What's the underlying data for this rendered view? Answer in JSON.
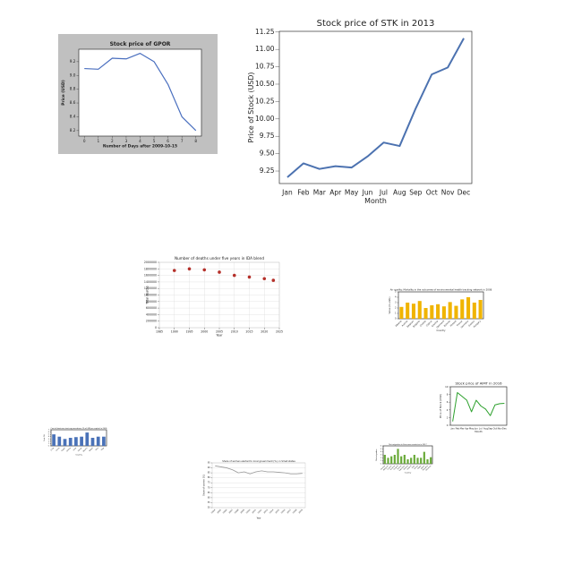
{
  "chart_data": [
    {
      "type": "line",
      "title": "Stock price of GPOR",
      "x_label": "Number of Days after 2009-10-15",
      "y_label": "Price (USD)",
      "x": [
        0,
        1,
        2,
        3,
        4,
        5,
        6,
        7,
        8
      ],
      "values": [
        9.1,
        9.09,
        9.25,
        9.24,
        9.32,
        9.2,
        8.87,
        8.4,
        8.2
      ],
      "color": "#4a6fbf",
      "xlim": [
        -0.4,
        8.4
      ],
      "xticks": [
        0,
        1,
        2,
        3,
        4,
        5,
        6,
        7,
        8
      ],
      "ylim": [
        8.12,
        9.38
      ],
      "yticks": [
        8.2,
        8.4,
        8.6,
        8.8,
        {
          "value": 9,
          "label": "9.0"
        },
        9.2
      ]
    },
    {
      "type": "line",
      "title": "Stock price of STK in 2013",
      "x_label": "Month",
      "y_label": "Price of Stock (USD)",
      "categories": [
        "Jan",
        "Feb",
        "Mar",
        "Apr",
        "May",
        "Jun",
        "Jul",
        "Aug",
        "Sep",
        "Oct",
        "Nov",
        "Dec"
      ],
      "values": [
        9.16,
        9.36,
        9.28,
        9.32,
        9.3,
        9.46,
        9.66,
        9.61,
        10.15,
        10.64,
        10.74,
        11.16
      ],
      "color": "#4c72b0",
      "ylim": [
        9.07,
        11.26
      ],
      "yticks": [
        9.25,
        {
          "value": 9.5,
          "label": "9.50"
        },
        9.75,
        {
          "value": 10,
          "label": "10.00"
        },
        10.25,
        {
          "value": 10.5,
          "label": "10.50"
        },
        10.75,
        {
          "value": 11,
          "label": "11.00"
        },
        11.25
      ]
    },
    {
      "type": "scatter",
      "title": "Number of deaths under five years in IDA blend",
      "x_label": "Year",
      "y_label": "Total deaths",
      "x": [
        1990,
        1995,
        2000,
        2005,
        2010,
        2015,
        2020,
        2023
      ],
      "values": [
        1750000,
        1800000,
        1770000,
        1700000,
        1600000,
        1550000,
        1500000,
        1450000
      ],
      "color": "#b5302a",
      "grid": true,
      "xlim": [
        1985,
        2025
      ],
      "xticks": [
        1985,
        1990,
        1995,
        2000,
        2005,
        2010,
        2015,
        2020,
        2025
      ],
      "ylim": [
        0,
        2000000
      ],
      "yticks": [
        0,
        200000,
        400000,
        600000,
        800000,
        1000000,
        1200000,
        1400000,
        1600000,
        1800000,
        2000000
      ]
    },
    {
      "type": "bar",
      "title": "Air quality: Mortality in the outcomes of environmental health tracking network in 2008",
      "x_label": "Country",
      "y_label": "Value (in units)",
      "categories": [
        "Albania",
        "Austria",
        "Belgium",
        "Bulgaria",
        "Croatia",
        "Cyprus",
        "Czechia",
        "Denmark",
        "Estonia",
        "Finland",
        "France",
        "Germany",
        "Greece",
        "Hungary"
      ],
      "values": [
        2.2,
        3,
        2.8,
        3.3,
        2,
        2.5,
        2.7,
        2.3,
        3.1,
        2.4,
        3.6,
        4,
        3,
        3.5
      ],
      "color": "#f0b400",
      "ylim": [
        0,
        5
      ],
      "yticks": [
        0,
        1,
        2,
        3,
        4,
        5
      ]
    },
    {
      "type": "line",
      "title": "Stock price of AIMT in 2016",
      "x_label": "Month",
      "y_label": "Price of Stock (USD)",
      "categories": [
        "Jan",
        "Feb",
        "Mar",
        "Apr",
        "May",
        "Jun",
        "Jul",
        "Aug",
        "Sep",
        "Oct",
        "Nov",
        "Dec"
      ],
      "values": [
        1,
        8.5,
        7.5,
        6.5,
        3.5,
        6.5,
        5,
        4.2,
        2.5,
        5.3,
        5.6,
        5.7
      ],
      "color": "#2ca02c",
      "ylim": [
        0,
        10
      ],
      "yticks": [
        0,
        2,
        4,
        6,
        8,
        10
      ]
    },
    {
      "type": "bar",
      "title": "Cost of business start-up procedures (% of GNI per capita) in 2005",
      "x_label": "Country",
      "y_label": "Cost (%)",
      "categories": [
        "Chile",
        "China",
        "Egypt",
        "Ghana",
        "India",
        "Kenya",
        "Mexico",
        "Nepal",
        "Peru",
        "Togo"
      ],
      "values": [
        5,
        4,
        3,
        3.5,
        3.8,
        4,
        5.8,
        3.5,
        4,
        4
      ],
      "color": "#4a72b8",
      "ylim": [
        0,
        7
      ],
      "yticks": [
        0,
        1,
        2,
        3,
        4,
        5,
        6,
        7
      ]
    },
    {
      "type": "line",
      "title": "Share of women elected to local government (%), in Small states",
      "x_label": "Year",
      "y_label": "Share of women (%)",
      "categories": [
        "2004",
        "2005",
        "2006",
        "2007",
        "2008",
        "2009",
        "2010",
        "2011",
        "2012",
        "2013",
        "2014",
        "2015",
        "2016",
        "2017",
        "2018",
        "2019"
      ],
      "values": [
        92,
        91,
        90,
        88,
        85,
        86,
        84,
        86,
        87,
        86,
        86,
        85.5,
        85,
        84,
        84,
        84.5
      ],
      "color": "#999999",
      "grid": true,
      "ylim": [
        50,
        95
      ],
      "yticks": [
        50,
        55,
        60,
        65,
        70,
        75,
        80,
        85,
        90,
        95
      ]
    },
    {
      "type": "bar",
      "title": "Net migration in Euro area countries in 2017",
      "x_label": "Country",
      "y_label": "Net migration",
      "categories": [
        "Austria",
        "Belgium",
        "Cyprus",
        "Estonia",
        "Finland",
        "France",
        "Germany",
        "Greece",
        "Ireland",
        "Italy",
        "Latvia",
        "Malta",
        "Spain",
        "Slovakia",
        "Slovenia"
      ],
      "values": [
        3,
        2,
        2.5,
        3,
        5,
        2.5,
        3,
        1.5,
        2,
        3,
        2,
        2,
        4,
        1.5,
        2.2
      ],
      "color": "#6aaa3a",
      "ylim": [
        0,
        6
      ],
      "yticks": [
        0,
        1,
        2,
        3,
        4,
        5,
        6
      ]
    }
  ]
}
